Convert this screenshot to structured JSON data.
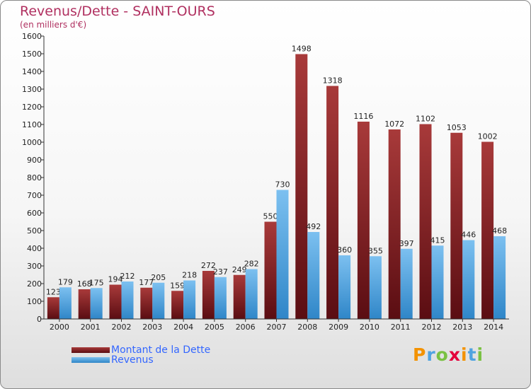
{
  "chart_data": {
    "type": "bar",
    "title": "Revenus/Dette - SAINT-OURS",
    "subtitle": "(en milliers d'€)",
    "categories": [
      "2000",
      "2001",
      "2002",
      "2003",
      "2004",
      "2005",
      "2006",
      "2007",
      "2008",
      "2009",
      "2010",
      "2011",
      "2012",
      "2013",
      "2014"
    ],
    "series": [
      {
        "name": "Montant de la Dette",
        "color": "#7a1a1f",
        "values": [
          123,
          168,
          194,
          177,
          159,
          272,
          249,
          550,
          1498,
          1318,
          1116,
          1072,
          1102,
          1053,
          1002
        ]
      },
      {
        "name": "Revenus",
        "color": "#4fa3e0",
        "values": [
          179,
          175,
          212,
          205,
          218,
          237,
          282,
          730,
          492,
          360,
          355,
          397,
          415,
          446,
          468
        ]
      }
    ],
    "ylim": [
      0,
      1600
    ],
    "yticks": [
      0,
      100,
      200,
      300,
      400,
      500,
      600,
      700,
      800,
      900,
      1000,
      1100,
      1200,
      1300,
      1400,
      1500,
      1600
    ],
    "xlabel": "",
    "ylabel": "",
    "grid": false,
    "legend": "bottom-left"
  },
  "logo": {
    "text": "Proxiti",
    "letters": [
      {
        "ch": "P",
        "color": "#f39200"
      },
      {
        "ch": "r",
        "color": "#4fa3e0"
      },
      {
        "ch": "o",
        "color": "#7ac143"
      },
      {
        "ch": "x",
        "color": "#e4003a"
      },
      {
        "ch": "i",
        "color": "#f39200"
      },
      {
        "ch": "t",
        "color": "#4fa3e0"
      },
      {
        "ch": "i",
        "color": "#7ac143"
      }
    ]
  }
}
